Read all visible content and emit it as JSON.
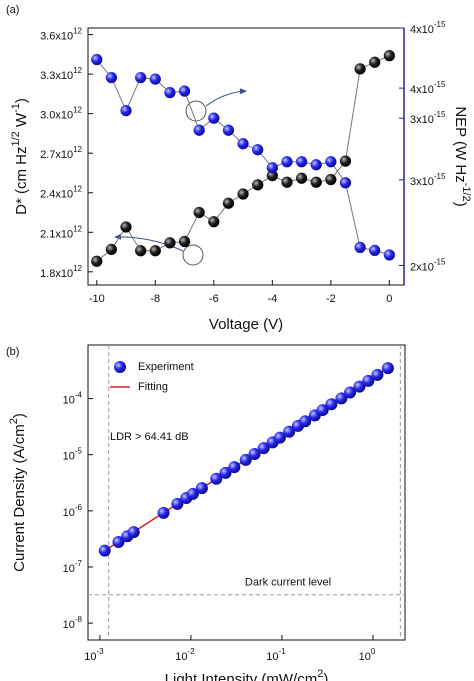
{
  "chart_data": [
    {
      "type": "line",
      "panel": "(a)",
      "xlabel": "Voltage (V)",
      "ylabel": [
        "D* (cm Hz",
        "1/2",
        " W",
        "-1",
        ")"
      ],
      "y2label": [
        "NEP (W Hz",
        "-1/2",
        ")"
      ],
      "x": [
        -10,
        -9.5,
        -9,
        -8.5,
        -8,
        -7.5,
        -7,
        -6.5,
        -6,
        -5.5,
        -5,
        -4.5,
        -4,
        -3.5,
        -3,
        -2.5,
        -2,
        -1.5,
        -1,
        -0.5,
        0
      ],
      "xlim": [
        -10.3,
        0.5
      ],
      "xticks": [
        -10,
        -8,
        -6,
        -4,
        -2,
        0
      ],
      "ylim": [
        1700000000000.0,
        3650000000000.0
      ],
      "yticks": [
        {
          "value": 1800000000000.0,
          "label": "1.8x10",
          "exponent": "12"
        },
        {
          "value": 2100000000000.0,
          "label": "2.1x10",
          "exponent": "12"
        },
        {
          "value": 2400000000000.0,
          "label": "2.4x10",
          "exponent": "12"
        },
        {
          "value": 2700000000000.0,
          "label": "2.7x10",
          "exponent": "12"
        },
        {
          "value": 3000000000000.0,
          "label": "3.0x10",
          "exponent": "12"
        },
        {
          "value": 3300000000000.0,
          "label": "3.3x10",
          "exponent": "12"
        },
        {
          "value": 3600000000000.0,
          "label": "3.6x10",
          "exponent": "12"
        }
      ],
      "y2lim": [
        2.27e-15,
        3.98e-15
      ],
      "y2ticks": [
        {
          "value": 2.4e-15,
          "label": "2x10",
          "exponent": "-15"
        },
        {
          "value": 2.97e-15,
          "label": "3x10",
          "exponent": "-15"
        },
        {
          "value": 3.38e-15,
          "label": "3x10",
          "exponent": "-15"
        },
        {
          "value": 3.58e-15,
          "label": "4x10",
          "exponent": "-15"
        },
        {
          "value": 3.98e-15,
          "label": "4x10",
          "exponent": "-15"
        }
      ],
      "series": [
        {
          "color": "#111111",
          "axis": "y",
          "values": [
            1880000000000.0,
            1970000000000.0,
            2140000000000.0,
            1960000000000.0,
            1960000000000.0,
            2020000000000.0,
            2030000000000.0,
            2250000000000.0,
            2180000000000.0,
            2320000000000.0,
            2390000000000.0,
            2460000000000.0,
            2530000000000.0,
            2480000000000.0,
            2510000000000.0,
            2480000000000.0,
            2500000000000.0,
            2640000000000.0,
            3340000000000.0,
            3390000000000.0,
            3440000000000.0
          ]
        },
        {
          "color": "#1c1ce0",
          "axis": "y2",
          "values": [
            3.77e-15,
            3.65e-15,
            3.43e-15,
            3.65e-15,
            3.64e-15,
            3.55e-15,
            3.56e-15,
            3.3e-15,
            3.38e-15,
            3.3e-15,
            3.21e-15,
            3.17e-15,
            3.05e-15,
            3.09e-15,
            3.09e-15,
            3.07e-15,
            3.09e-15,
            2.95e-15,
            2.52e-15,
            2.5e-15,
            2.47e-15
          ]
        }
      ]
    },
    {
      "type": "scatter",
      "panel": "(b)",
      "xlabel": [
        "Light Intensity (mW/cm",
        "2",
        ")"
      ],
      "ylabel": [
        "Current Density (A/cm",
        "2",
        ")"
      ],
      "xlog": true,
      "ylog": true,
      "xlim": [
        0.00074,
        2.25
      ],
      "ylim": [
        5e-09,
        0.0009
      ],
      "xticks": [
        {
          "value": 0.001,
          "label": "10",
          "exponent": "-3"
        },
        {
          "value": 0.01,
          "label": "10",
          "exponent": "-2"
        },
        {
          "value": 0.1,
          "label": "10",
          "exponent": "-1"
        },
        {
          "value": 1,
          "label": "10",
          "exponent": "0"
        }
      ],
      "yticks": [
        {
          "value": 1e-08,
          "label": "10",
          "exponent": "-8"
        },
        {
          "value": 1e-07,
          "label": "10",
          "exponent": "-7"
        },
        {
          "value": 1e-06,
          "label": "10",
          "exponent": "-6"
        },
        {
          "value": 1e-05,
          "label": "10",
          "exponent": "-5"
        },
        {
          "value": 0.0001,
          "label": "10",
          "exponent": "-4"
        }
      ],
      "annotation": "LDR > 64.41 dB",
      "hline": {
        "value": 3.2e-08,
        "label": "Dark current level"
      },
      "vlines": [
        0.00125,
        2.0
      ],
      "legend": "upper left",
      "series": [
        {
          "name": "Experiment",
          "color": "#1c1ce0",
          "kind": "scatter",
          "x": [
            0.00113,
            0.0016,
            0.002,
            0.00235,
            0.005,
            0.0071,
            0.0089,
            0.0105,
            0.0132,
            0.019,
            0.024,
            0.03,
            0.04,
            0.05,
            0.063,
            0.079,
            0.095,
            0.12,
            0.15,
            0.18,
            0.23,
            0.28,
            0.35,
            0.45,
            0.56,
            0.71,
            0.89,
            1.12,
            1.46
          ],
          "values": [
            1.95e-07,
            2.78e-07,
            3.53e-07,
            4.18e-07,
            9.2e-07,
            1.33e-06,
            1.69e-06,
            2e-06,
            2.54e-06,
            3.73e-06,
            4.75e-06,
            6e-06,
            8.07e-06,
            1.03e-05,
            1.31e-05,
            1.66e-05,
            2.01e-05,
            2.56e-05,
            3.26e-05,
            3.94e-05,
            5.02e-05,
            6.24e-05,
            7.93e-05,
            0.000101,
            0.000128,
            0.000163,
            0.000207,
            0.000264,
            0.000348
          ]
        },
        {
          "name": "Fitting",
          "color": "#d42020",
          "kind": "line",
          "x": [
            0.0011,
            1.6
          ],
          "values": [
            1.9e-07,
            0.000383
          ]
        }
      ]
    }
  ]
}
